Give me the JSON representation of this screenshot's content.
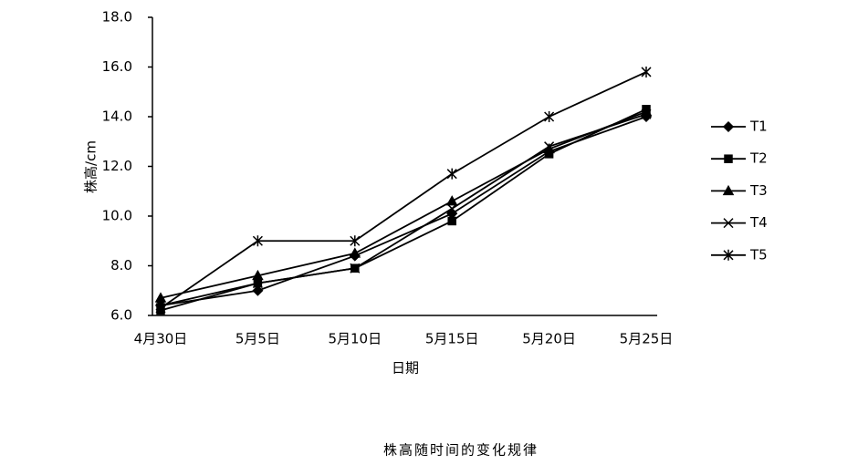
{
  "chart_data": {
    "type": "line",
    "title": "株高随时间的变化规律",
    "x_label": "日期",
    "y_label": "株高/cm",
    "categories": [
      "4月30日",
      "5月5日",
      "5月10日",
      "5月15日",
      "5月20日",
      "5月25日"
    ],
    "ylim": [
      6,
      18
    ],
    "yticks": [
      {
        "value": 6,
        "label": "6.0"
      },
      {
        "value": 8,
        "label": "8.0"
      },
      {
        "value": 10,
        "label": "10.0"
      },
      {
        "value": 12,
        "label": "12.0"
      },
      {
        "value": 14,
        "label": "14.0"
      },
      {
        "value": 16,
        "label": "16.0"
      },
      {
        "value": 18,
        "label": "18.0"
      }
    ],
    "legend": "right",
    "series": [
      {
        "name": "T1",
        "color": "#000000",
        "marker": "diamond",
        "values": [
          6.4,
          7.0,
          8.4,
          10.1,
          12.6,
          14.0
        ]
      },
      {
        "name": "T2",
        "color": "#000000",
        "marker": "square",
        "values": [
          6.2,
          7.3,
          7.9,
          9.8,
          12.5,
          14.3
        ]
      },
      {
        "name": "T3",
        "color": "#000000",
        "marker": "triangle",
        "values": [
          6.7,
          7.6,
          8.5,
          10.6,
          12.7,
          14.2
        ]
      },
      {
        "name": "T4",
        "color": "#000000",
        "marker": "x",
        "values": [
          6.4,
          7.3,
          7.9,
          10.3,
          12.8,
          14.1
        ]
      },
      {
        "name": "T5",
        "color": "#000000",
        "marker": "star",
        "values": [
          6.3,
          9.0,
          9.0,
          11.7,
          14.0,
          15.8
        ]
      }
    ]
  }
}
